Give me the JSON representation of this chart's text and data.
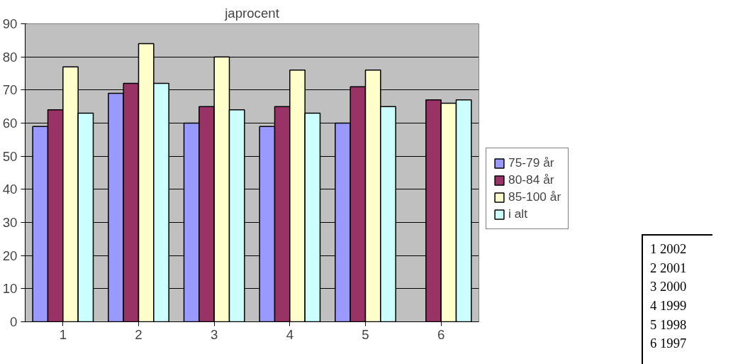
{
  "chart_data": {
    "type": "bar",
    "title": "japrocent",
    "categories": [
      "1",
      "2",
      "3",
      "4",
      "5",
      "6"
    ],
    "series": [
      {
        "name": "75-79 år",
        "color": "#9999ff",
        "values": [
          59,
          69,
          60,
          59,
          60,
          null
        ]
      },
      {
        "name": "80-84 år",
        "color": "#993366",
        "values": [
          64,
          72,
          65,
          65,
          71,
          67
        ]
      },
      {
        "name": "85-100 år",
        "color": "#ffffcc",
        "values": [
          77,
          84,
          80,
          76,
          76,
          66
        ]
      },
      {
        "name": "i alt",
        "color": "#ccffff",
        "values": [
          63,
          72,
          64,
          63,
          65,
          67
        ]
      }
    ],
    "ylim": [
      0,
      90
    ],
    "yticks": [
      0,
      10,
      20,
      30,
      40,
      50,
      60,
      70,
      80,
      90
    ],
    "grid": "y",
    "legend": "right",
    "annotations": [
      "1  2002",
      "2  2001",
      "3  2000",
      "4  1999",
      "5  1998",
      "6  1997"
    ]
  }
}
